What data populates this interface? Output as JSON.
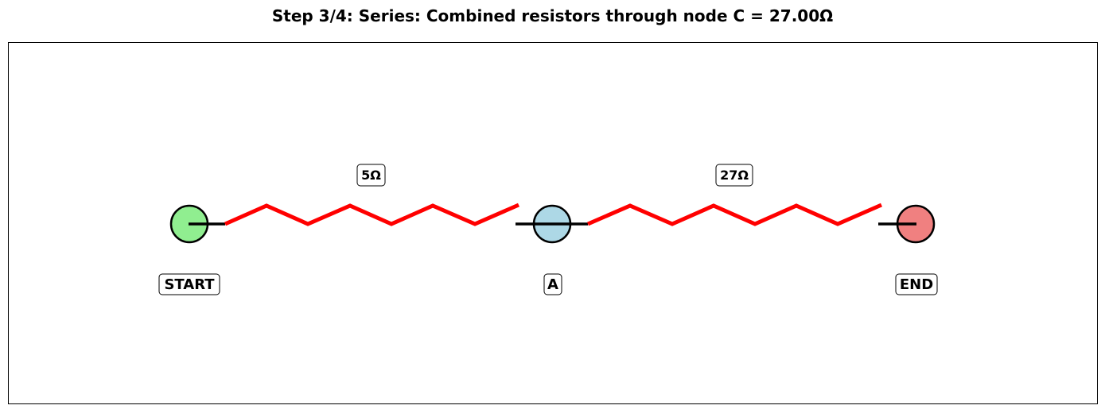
{
  "title": "Step 3/4: Series: Combined resistors through node C = 27.00Ω",
  "nodes": [
    {
      "id": "start",
      "label": "START",
      "color": "#90ee90"
    },
    {
      "id": "a",
      "label": "A",
      "color": "#add8e6"
    },
    {
      "id": "end",
      "label": "END",
      "color": "#f08080"
    }
  ],
  "resistors": [
    {
      "from": "start",
      "to": "a",
      "label": "5Ω",
      "color": "#ff0000"
    },
    {
      "from": "a",
      "to": "end",
      "label": "27Ω",
      "color": "#ff0000"
    }
  ]
}
